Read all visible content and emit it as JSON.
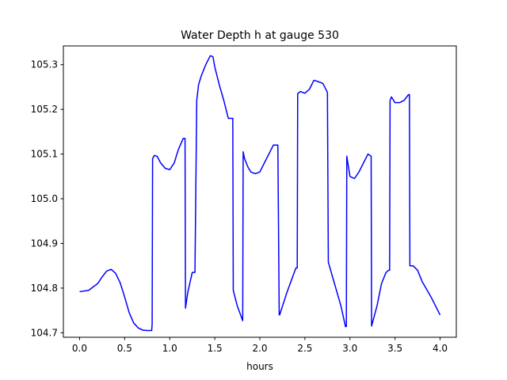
{
  "chart_data": {
    "type": "line",
    "title": "Water Depth h at gauge 530",
    "xlabel": "hours",
    "ylabel": "",
    "xlim": [
      -0.18,
      4.18
    ],
    "ylim": [
      104.69,
      105.342
    ],
    "xticks": [
      0.0,
      0.5,
      1.0,
      1.5,
      2.0,
      2.5,
      3.0,
      3.5,
      4.0
    ],
    "xtick_labels": [
      "0.0",
      "0.5",
      "1.0",
      "1.5",
      "2.0",
      "2.5",
      "3.0",
      "3.5",
      "4.0"
    ],
    "yticks": [
      104.7,
      104.8,
      104.9,
      105.0,
      105.1,
      105.2,
      105.3
    ],
    "ytick_labels": [
      "104.7",
      "104.8",
      "104.9",
      "105.0",
      "105.1",
      "105.2",
      "105.3"
    ],
    "grid": false,
    "line_color": "#0000ff",
    "series": [
      {
        "x": [
          0.0,
          0.1,
          0.2,
          0.25,
          0.3,
          0.35,
          0.4,
          0.45,
          0.5,
          0.55,
          0.6,
          0.65,
          0.7,
          0.75,
          0.8,
          0.805,
          0.81,
          0.83,
          0.86,
          0.9,
          0.95,
          1.0,
          1.05,
          1.08,
          1.1,
          1.15,
          1.17,
          1.175,
          1.2,
          1.25,
          1.28,
          1.3,
          1.32,
          1.35,
          1.4,
          1.45,
          1.48,
          1.5,
          1.55,
          1.6,
          1.65,
          1.7,
          1.705,
          1.75,
          1.81,
          1.815,
          1.83,
          1.87,
          1.9,
          1.95,
          2.0,
          2.05,
          2.1,
          2.15,
          2.2,
          2.215,
          2.22,
          2.3,
          2.4,
          2.415,
          2.42,
          2.45,
          2.5,
          2.55,
          2.6,
          2.65,
          2.7,
          2.75,
          2.76,
          2.8,
          2.9,
          2.95,
          2.96,
          2.965,
          3.0,
          3.05,
          3.1,
          3.15,
          3.2,
          3.235,
          3.24,
          3.3,
          3.35,
          3.4,
          3.43,
          3.44,
          3.445,
          3.46,
          3.5,
          3.55,
          3.6,
          3.65,
          3.66,
          3.665,
          3.7,
          3.75,
          3.8,
          3.9,
          4.0
        ],
        "y": [
          104.792,
          104.795,
          104.81,
          104.825,
          104.838,
          104.842,
          104.833,
          104.812,
          104.78,
          104.745,
          104.722,
          104.711,
          104.706,
          104.705,
          104.705,
          104.72,
          105.09,
          105.097,
          105.095,
          105.08,
          105.068,
          105.065,
          105.08,
          105.1,
          105.112,
          105.135,
          105.135,
          104.755,
          104.79,
          104.835,
          104.835,
          105.22,
          105.255,
          105.275,
          105.3,
          105.32,
          105.318,
          105.295,
          105.255,
          105.22,
          105.18,
          105.18,
          104.795,
          104.76,
          104.727,
          105.105,
          105.09,
          105.07,
          105.06,
          105.056,
          105.06,
          105.08,
          105.1,
          105.12,
          105.12,
          104.74,
          104.74,
          104.79,
          104.845,
          104.845,
          105.235,
          105.24,
          105.236,
          105.245,
          105.265,
          105.262,
          105.258,
          105.238,
          104.858,
          104.83,
          104.76,
          104.714,
          104.714,
          105.095,
          105.05,
          105.045,
          105.06,
          105.08,
          105.1,
          105.095,
          104.715,
          104.76,
          104.81,
          104.835,
          104.84,
          104.84,
          105.22,
          105.228,
          105.215,
          105.215,
          105.22,
          105.233,
          105.233,
          104.85,
          104.85,
          104.84,
          104.815,
          104.78,
          104.74
        ]
      }
    ]
  }
}
